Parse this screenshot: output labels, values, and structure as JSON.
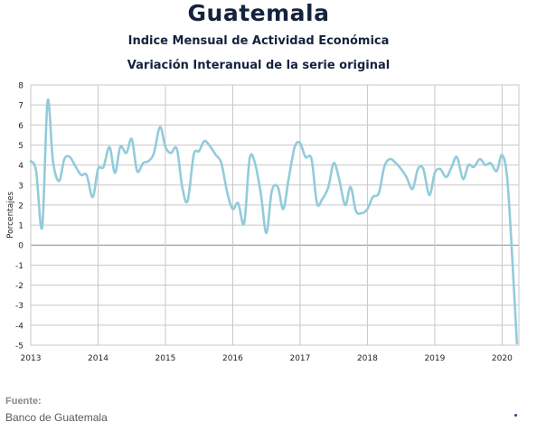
{
  "header": {
    "title": "Guatemala",
    "subtitle_1": "Indice Mensual de  Actividad Económica",
    "subtitle_2": "Variación Interanual de la serie original"
  },
  "footer": {
    "label": "Fuente:",
    "source": "Banco de Guatemala"
  },
  "colors": {
    "line": "#92cbdb",
    "grid": "#c8c8c8",
    "zero_line": "#8c8c8c",
    "title": "#14233d"
  },
  "chart_data": {
    "type": "line",
    "ylabel": "Porcentajes",
    "xlabel": "",
    "ylim": [
      -5,
      8
    ],
    "yticks": [
      -5,
      -4,
      -3,
      -2,
      -1,
      0,
      1,
      2,
      3,
      4,
      5,
      6,
      7,
      8
    ],
    "xlim": [
      2013,
      2020.25
    ],
    "xticks": [
      2013,
      2014,
      2015,
      2016,
      2017,
      2018,
      2019,
      2020
    ],
    "grid": true,
    "legend": "none",
    "series": [
      {
        "values": [
          [
            2013.0,
            4.2
          ],
          [
            2013.08,
            3.7
          ],
          [
            2013.17,
            0.9
          ],
          [
            2013.25,
            7.2
          ],
          [
            2013.33,
            4.2
          ],
          [
            2013.42,
            3.2
          ],
          [
            2013.5,
            4.3
          ],
          [
            2013.58,
            4.4
          ],
          [
            2013.67,
            3.9
          ],
          [
            2013.75,
            3.5
          ],
          [
            2013.83,
            3.5
          ],
          [
            2013.92,
            2.4
          ],
          [
            2014.0,
            3.8
          ],
          [
            2014.08,
            3.9
          ],
          [
            2014.17,
            4.9
          ],
          [
            2014.25,
            3.6
          ],
          [
            2014.33,
            4.9
          ],
          [
            2014.42,
            4.6
          ],
          [
            2014.5,
            5.3
          ],
          [
            2014.58,
            3.7
          ],
          [
            2014.67,
            4.1
          ],
          [
            2014.75,
            4.2
          ],
          [
            2014.83,
            4.6
          ],
          [
            2014.92,
            5.9
          ],
          [
            2015.0,
            4.9
          ],
          [
            2015.08,
            4.6
          ],
          [
            2015.17,
            4.8
          ],
          [
            2015.25,
            2.9
          ],
          [
            2015.33,
            2.2
          ],
          [
            2015.42,
            4.5
          ],
          [
            2015.5,
            4.7
          ],
          [
            2015.58,
            5.2
          ],
          [
            2015.67,
            4.9
          ],
          [
            2015.75,
            4.5
          ],
          [
            2015.83,
            4.1
          ],
          [
            2015.92,
            2.6
          ],
          [
            2016.0,
            1.8
          ],
          [
            2016.08,
            2.1
          ],
          [
            2016.17,
            1.1
          ],
          [
            2016.25,
            4.3
          ],
          [
            2016.33,
            4.1
          ],
          [
            2016.42,
            2.5
          ],
          [
            2016.5,
            0.6
          ],
          [
            2016.58,
            2.7
          ],
          [
            2016.67,
            2.9
          ],
          [
            2016.75,
            1.8
          ],
          [
            2016.83,
            3.3
          ],
          [
            2016.92,
            4.9
          ],
          [
            2017.0,
            5.1
          ],
          [
            2017.08,
            4.4
          ],
          [
            2017.17,
            4.3
          ],
          [
            2017.25,
            2.1
          ],
          [
            2017.33,
            2.3
          ],
          [
            2017.42,
            2.9
          ],
          [
            2017.5,
            4.1
          ],
          [
            2017.58,
            3.3
          ],
          [
            2017.67,
            2.0
          ],
          [
            2017.75,
            2.9
          ],
          [
            2017.83,
            1.7
          ],
          [
            2017.92,
            1.6
          ],
          [
            2018.0,
            1.8
          ],
          [
            2018.08,
            2.4
          ],
          [
            2018.17,
            2.6
          ],
          [
            2018.25,
            3.9
          ],
          [
            2018.33,
            4.3
          ],
          [
            2018.42,
            4.1
          ],
          [
            2018.5,
            3.8
          ],
          [
            2018.58,
            3.4
          ],
          [
            2018.67,
            2.8
          ],
          [
            2018.75,
            3.8
          ],
          [
            2018.83,
            3.8
          ],
          [
            2018.92,
            2.5
          ],
          [
            2019.0,
            3.6
          ],
          [
            2019.08,
            3.8
          ],
          [
            2019.17,
            3.4
          ],
          [
            2019.25,
            3.9
          ],
          [
            2019.33,
            4.4
          ],
          [
            2019.42,
            3.3
          ],
          [
            2019.5,
            4.0
          ],
          [
            2019.58,
            3.9
          ],
          [
            2019.67,
            4.3
          ],
          [
            2019.75,
            4.0
          ],
          [
            2019.83,
            4.1
          ],
          [
            2019.92,
            3.7
          ],
          [
            2020.0,
            4.5
          ],
          [
            2020.08,
            3.2
          ],
          [
            2020.17,
            -1.8
          ],
          [
            2020.22,
            -4.9
          ]
        ]
      }
    ]
  }
}
